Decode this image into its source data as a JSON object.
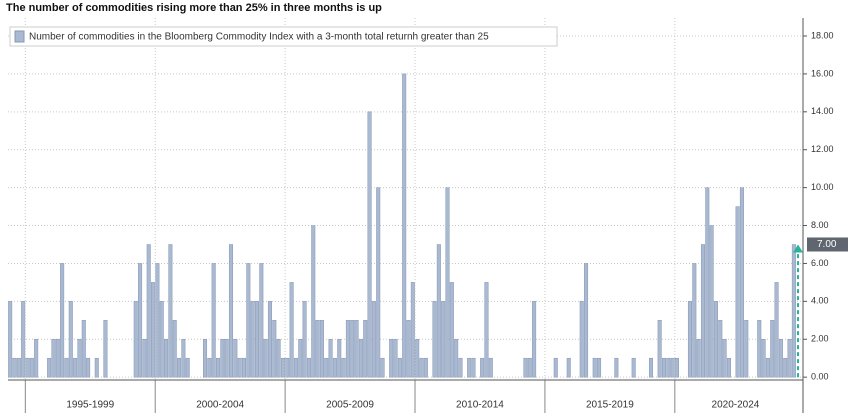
{
  "chart_data": {
    "type": "bar",
    "title": "The number of commodities rising more than 25% in three months is up",
    "series_name": "Number of commodities in the Bloomberg Commodity Index with a 3-month total returnh greater than 25",
    "color": "#a9b9d2",
    "edge_color": "#8797b3",
    "ylim": [
      -0.15,
      18.95
    ],
    "yticks": [
      {
        "value": 0,
        "label": "0.00"
      },
      {
        "value": 2,
        "label": "2.00"
      },
      {
        "value": 4,
        "label": "4.00"
      },
      {
        "value": 6,
        "label": "6.00"
      },
      {
        "value": 8,
        "label": "8.00"
      },
      {
        "value": 10,
        "label": "10.00"
      },
      {
        "value": 12,
        "label": "12.00"
      },
      {
        "value": 14,
        "label": "14.00"
      },
      {
        "value": 16,
        "label": "16.00"
      },
      {
        "value": 18,
        "label": "18.00"
      }
    ],
    "grid": true,
    "last_value": {
      "value": 7,
      "label": "7.00"
    },
    "groups": [
      {
        "label": null,
        "values": [
          4,
          1,
          1,
          4
        ]
      },
      {
        "label": "1995-1999",
        "values": [
          1,
          1,
          2,
          0,
          0,
          1,
          2,
          2,
          6,
          1,
          4,
          1,
          2,
          3,
          1,
          0,
          1,
          0,
          3,
          0,
          0,
          0,
          0,
          0,
          0,
          4,
          6,
          2,
          7,
          5
        ]
      },
      {
        "label": "2000-2004",
        "values": [
          6,
          4,
          2,
          7,
          3,
          1,
          2,
          1,
          0,
          0,
          0,
          2,
          1,
          6,
          1,
          2,
          2,
          7,
          2,
          1,
          1,
          6,
          4,
          4,
          6,
          2,
          4,
          3,
          2,
          1
        ]
      },
      {
        "label": "2005-2009",
        "values": [
          1,
          5,
          1,
          2,
          4,
          1,
          8,
          3,
          3,
          1,
          2,
          1,
          2,
          1,
          3,
          3,
          3,
          2,
          3,
          14,
          4,
          10,
          1,
          0,
          2,
          2,
          1,
          16,
          3,
          5
        ]
      },
      {
        "label": "2010-2014",
        "values": [
          2,
          1,
          1,
          0,
          4,
          7,
          4,
          10,
          5,
          2,
          1,
          0,
          1,
          1,
          0,
          1,
          5,
          1,
          0,
          0,
          0,
          0,
          0,
          0,
          0,
          1,
          1,
          4,
          0,
          0
        ]
      },
      {
        "label": "2015-2019",
        "values": [
          0,
          0,
          1,
          0,
          0,
          1,
          0,
          0,
          4,
          6,
          0,
          1,
          1,
          0,
          0,
          0,
          1,
          0,
          0,
          0,
          1,
          0,
          0,
          0,
          1,
          0,
          3,
          1,
          1,
          1
        ]
      },
      {
        "label": "2020-2024",
        "values": [
          1,
          0,
          0,
          4,
          6,
          2,
          7,
          10,
          8,
          4,
          3,
          2,
          1,
          0,
          9,
          10,
          3,
          0,
          0,
          3,
          2,
          1,
          3,
          5,
          2,
          1,
          2,
          7
        ]
      }
    ]
  }
}
